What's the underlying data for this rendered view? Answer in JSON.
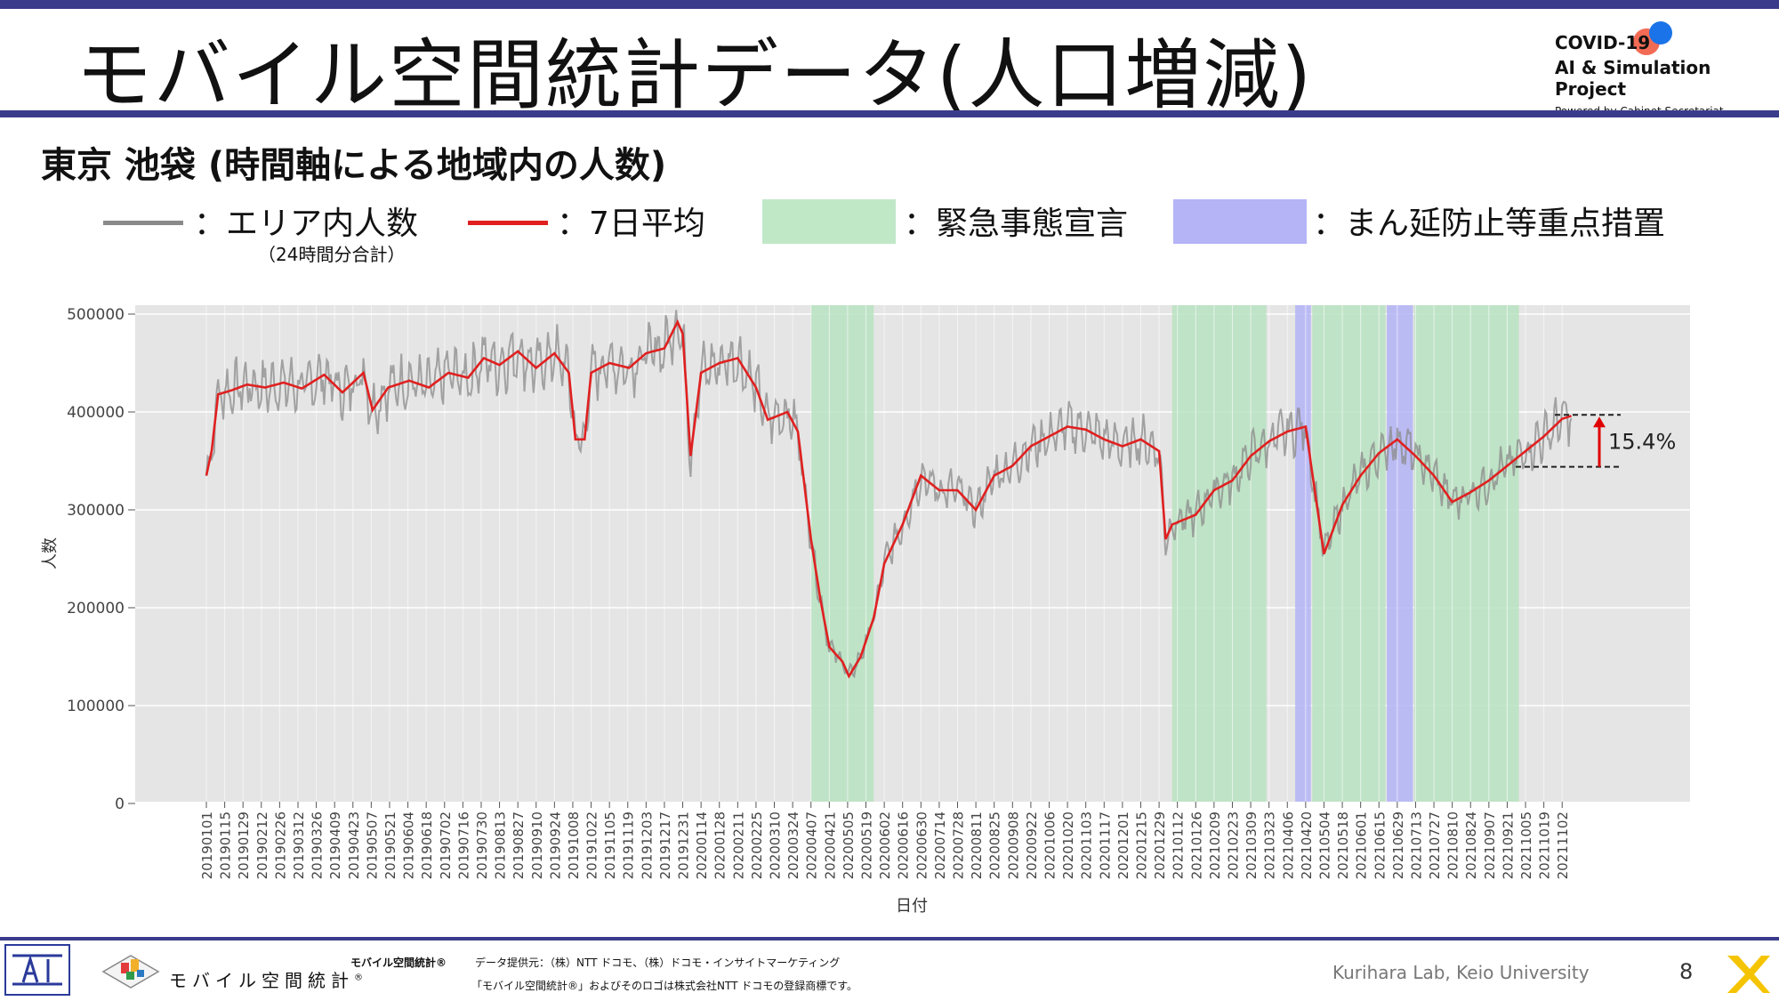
{
  "slide": {
    "title": "モバイル空間統計データ(人口増減)",
    "subtitle": "東京 池袋 (時間軸による地域内の人数)",
    "page_number": "8",
    "credit": "Kurihara Lab, Keio University"
  },
  "logo": {
    "line1": "COVID-19",
    "line2": "AI & Simulation Project",
    "line3": "Powered by Cabinet Secretariat"
  },
  "legend": {
    "area_count": "：エリア内人数",
    "area_count_note": "（24時間分合計）",
    "avg7": "：7日平均",
    "emergency": "：緊急事態宣言",
    "priority": "：まん延防止等重点措置",
    "colors": {
      "gray": "#8a8a8a",
      "red": "#e02020",
      "green": "#b9e3c1",
      "purple": "#b4b4f7"
    }
  },
  "footer": {
    "mobile_logo_text": "モバイル空間統計",
    "mobile_logo_sup": "®",
    "provider_title": "モバイル空間統計®",
    "provider": "データ提供元：（株）NTT ドコモ、（株）ドコモ・インサイトマーケティング",
    "trademark": "「モバイル空間統計®」およびそのロゴは株式会社NTT ドコモの登録商標です。"
  },
  "chart_data": {
    "type": "line",
    "ylabel": "人数",
    "xlabel": "日付",
    "ylim": [
      0,
      520000
    ],
    "yticks": [
      0,
      100000,
      200000,
      300000,
      400000,
      500000
    ],
    "ytick_labels": [
      "0",
      "100000",
      "200000",
      "300000",
      "400000",
      "500000"
    ],
    "x_start": "2019-01-01",
    "x_end": "2021-11-10",
    "x_tick_labels": [
      "20190101",
      "20190115",
      "20190129",
      "20190212",
      "20190226",
      "20190312",
      "20190326",
      "20190409",
      "20190423",
      "20190507",
      "20190521",
      "20190604",
      "20190618",
      "20190702",
      "20190716",
      "20190730",
      "20190813",
      "20190827",
      "20190910",
      "20190924",
      "20191008",
      "20191022",
      "20191105",
      "20191119",
      "20191203",
      "20191217",
      "20191231",
      "20200114",
      "20200128",
      "20200211",
      "20200225",
      "20200310",
      "20200324",
      "20200407",
      "20200421",
      "20200505",
      "20200519",
      "20200602",
      "20200616",
      "20200630",
      "20200714",
      "20200728",
      "20200811",
      "20200825",
      "20200908",
      "20200922",
      "20201006",
      "20201020",
      "20201103",
      "20201117",
      "20201201",
      "20201215",
      "20201229",
      "20210112",
      "20210126",
      "20210209",
      "20210223",
      "20210309",
      "20210323",
      "20210406",
      "20210420",
      "20210504",
      "20210518",
      "20210601",
      "20210615",
      "20210629",
      "20210713",
      "20210727",
      "20210810",
      "20210824",
      "20210907",
      "20210921",
      "20211005",
      "20211019",
      "20211102"
    ],
    "series": [
      {
        "name": "7日平均",
        "color": "#e02020",
        "points": [
          [
            "2019-01-01",
            335000
          ],
          [
            "2019-01-05",
            360000
          ],
          [
            "2019-01-10",
            418000
          ],
          [
            "2019-01-20",
            422000
          ],
          [
            "2019-02-01",
            428000
          ],
          [
            "2019-02-15",
            425000
          ],
          [
            "2019-03-01",
            430000
          ],
          [
            "2019-03-15",
            424000
          ],
          [
            "2019-04-01",
            438000
          ],
          [
            "2019-04-15",
            420000
          ],
          [
            "2019-05-01",
            440000
          ],
          [
            "2019-05-08",
            402000
          ],
          [
            "2019-05-20",
            425000
          ],
          [
            "2019-06-05",
            432000
          ],
          [
            "2019-06-20",
            425000
          ],
          [
            "2019-07-05",
            440000
          ],
          [
            "2019-07-20",
            435000
          ],
          [
            "2019-08-01",
            455000
          ],
          [
            "2019-08-13",
            448000
          ],
          [
            "2019-08-27",
            462000
          ],
          [
            "2019-09-10",
            445000
          ],
          [
            "2019-09-24",
            460000
          ],
          [
            "2019-10-05",
            440000
          ],
          [
            "2019-10-10",
            372000
          ],
          [
            "2019-10-17",
            372000
          ],
          [
            "2019-10-22",
            440000
          ],
          [
            "2019-11-05",
            450000
          ],
          [
            "2019-11-20",
            445000
          ],
          [
            "2019-12-03",
            460000
          ],
          [
            "2019-12-17",
            465000
          ],
          [
            "2019-12-27",
            492000
          ],
          [
            "2019-12-31",
            480000
          ],
          [
            "2020-01-06",
            355000
          ],
          [
            "2020-01-14",
            440000
          ],
          [
            "2020-01-28",
            450000
          ],
          [
            "2020-02-11",
            455000
          ],
          [
            "2020-02-25",
            425000
          ],
          [
            "2020-03-05",
            392000
          ],
          [
            "2020-03-20",
            400000
          ],
          [
            "2020-03-28",
            380000
          ],
          [
            "2020-04-07",
            270000
          ],
          [
            "2020-04-14",
            210000
          ],
          [
            "2020-04-21",
            160000
          ],
          [
            "2020-05-01",
            145000
          ],
          [
            "2020-05-06",
            130000
          ],
          [
            "2020-05-15",
            150000
          ],
          [
            "2020-05-25",
            190000
          ],
          [
            "2020-06-02",
            245000
          ],
          [
            "2020-06-16",
            285000
          ],
          [
            "2020-06-30",
            335000
          ],
          [
            "2020-07-14",
            320000
          ],
          [
            "2020-07-28",
            320000
          ],
          [
            "2020-08-11",
            300000
          ],
          [
            "2020-08-25",
            335000
          ],
          [
            "2020-09-08",
            345000
          ],
          [
            "2020-09-22",
            365000
          ],
          [
            "2020-10-06",
            375000
          ],
          [
            "2020-10-20",
            385000
          ],
          [
            "2020-11-03",
            382000
          ],
          [
            "2020-11-17",
            372000
          ],
          [
            "2020-12-01",
            365000
          ],
          [
            "2020-12-15",
            372000
          ],
          [
            "2020-12-29",
            360000
          ],
          [
            "2021-01-03",
            270000
          ],
          [
            "2021-01-08",
            285000
          ],
          [
            "2021-01-26",
            295000
          ],
          [
            "2021-02-09",
            320000
          ],
          [
            "2021-02-23",
            330000
          ],
          [
            "2021-03-09",
            355000
          ],
          [
            "2021-03-23",
            370000
          ],
          [
            "2021-04-06",
            380000
          ],
          [
            "2021-04-20",
            385000
          ],
          [
            "2021-04-28",
            310000
          ],
          [
            "2021-05-04",
            255000
          ],
          [
            "2021-05-18",
            305000
          ],
          [
            "2021-06-01",
            335000
          ],
          [
            "2021-06-15",
            358000
          ],
          [
            "2021-06-29",
            372000
          ],
          [
            "2021-07-13",
            355000
          ],
          [
            "2021-07-27",
            335000
          ],
          [
            "2021-08-10",
            308000
          ],
          [
            "2021-08-24",
            318000
          ],
          [
            "2021-09-07",
            330000
          ],
          [
            "2021-09-21",
            345000
          ],
          [
            "2021-10-05",
            360000
          ],
          [
            "2021-10-19",
            375000
          ],
          [
            "2021-11-02",
            393000
          ],
          [
            "2021-11-09",
            396000
          ]
        ]
      },
      {
        "name": "エリア内人数",
        "color": "#8a8a8a",
        "noise": 32000
      }
    ],
    "shaded_periods": [
      {
        "type": "緊急事態宣言",
        "start": "2020-04-07",
        "end": "2020-05-25"
      },
      {
        "type": "緊急事態宣言",
        "start": "2021-01-08",
        "end": "2021-03-21"
      },
      {
        "type": "まん延防止等重点措置",
        "start": "2021-04-12",
        "end": "2021-04-24"
      },
      {
        "type": "緊急事態宣言",
        "start": "2021-04-25",
        "end": "2021-06-20"
      },
      {
        "type": "まん延防止等重点措置",
        "start": "2021-06-21",
        "end": "2021-07-11"
      },
      {
        "type": "緊急事態宣言",
        "start": "2021-07-12",
        "end": "2021-09-30"
      }
    ],
    "annotation": {
      "label": "15.4%",
      "from_value": 344000,
      "to_value": 397000
    }
  }
}
